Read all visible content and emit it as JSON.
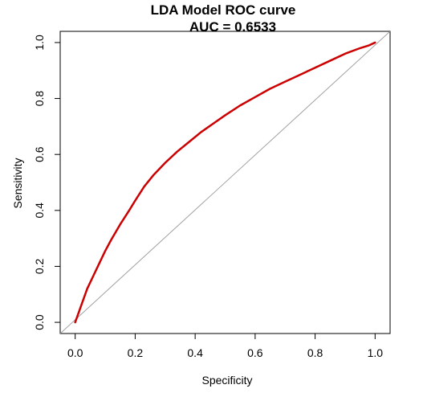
{
  "chart_data": {
    "type": "line",
    "title": "LDA Model ROC curve",
    "subtitle": "AUC = 0.6533",
    "xlabel": "Specificity",
    "ylabel": "Sensitivity",
    "xlim": [
      -0.05,
      1.05
    ],
    "ylim": [
      -0.04,
      1.04
    ],
    "x_ticks": [
      0.0,
      0.2,
      0.4,
      0.6,
      0.8,
      1.0
    ],
    "x_tick_labels": [
      "0.0",
      "0.2",
      "0.4",
      "0.6",
      "0.8",
      "1.0"
    ],
    "y_ticks": [
      0.0,
      0.2,
      0.4,
      0.6,
      0.8,
      1.0
    ],
    "y_tick_labels": [
      "0.0",
      "0.2",
      "0.4",
      "0.6",
      "0.8",
      "1.0"
    ],
    "grid": false,
    "reference_line": {
      "points": [
        [
          -0.05,
          -0.04
        ],
        [
          1.05,
          1.04
        ]
      ],
      "color": "#a0a0a0"
    },
    "series": [
      {
        "color": "#cc0000",
        "x": [
          0.0,
          0.02,
          0.04,
          0.06,
          0.08,
          0.1,
          0.12,
          0.15,
          0.18,
          0.2,
          0.23,
          0.26,
          0.3,
          0.34,
          0.38,
          0.42,
          0.46,
          0.5,
          0.55,
          0.6,
          0.65,
          0.7,
          0.75,
          0.8,
          0.85,
          0.9,
          0.95,
          0.98,
          1.0
        ],
        "y": [
          0.0,
          0.06,
          0.12,
          0.165,
          0.21,
          0.255,
          0.295,
          0.35,
          0.4,
          0.435,
          0.485,
          0.525,
          0.57,
          0.61,
          0.645,
          0.68,
          0.71,
          0.74,
          0.775,
          0.805,
          0.835,
          0.86,
          0.885,
          0.91,
          0.935,
          0.96,
          0.98,
          0.99,
          1.0
        ]
      }
    ]
  }
}
